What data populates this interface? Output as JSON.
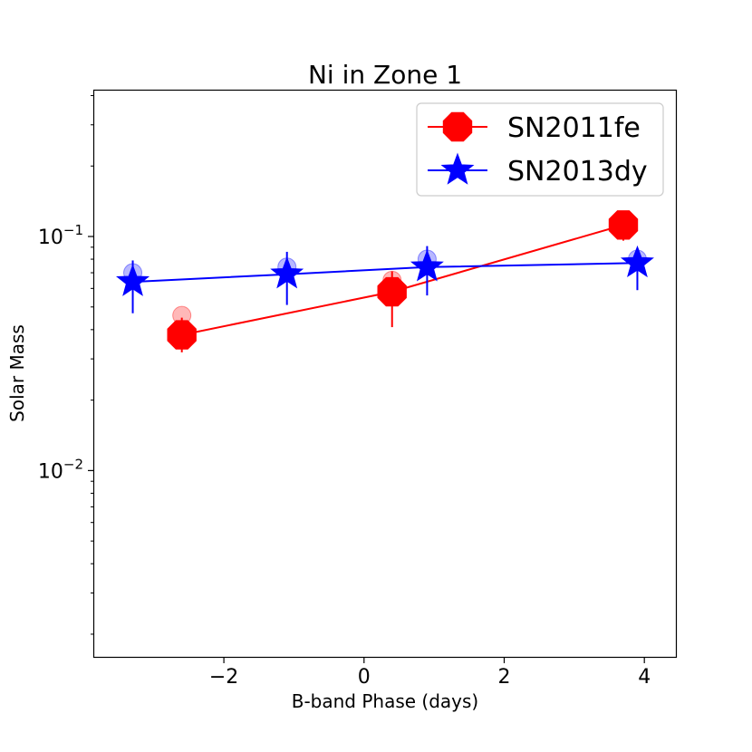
{
  "chart_data": {
    "type": "line",
    "title": "Ni in Zone 1",
    "xlabel": "B-band Phase (days)",
    "ylabel": "Solar Mass",
    "yscale": "log",
    "xlim": [
      -3.85,
      4.45
    ],
    "ylim": [
      0.0016,
      0.42
    ],
    "xticks": [
      {
        "value": -2,
        "label": "−2"
      },
      {
        "value": 0,
        "label": "0"
      },
      {
        "value": 2,
        "label": "2"
      },
      {
        "value": 4,
        "label": "4"
      }
    ],
    "yticks": [
      {
        "value": 0.01,
        "base": "10",
        "exp": "−2"
      },
      {
        "value": 0.1,
        "base": "10",
        "exp": "−1"
      }
    ],
    "series": [
      {
        "name": "SN2011fe",
        "color": "#ff0000",
        "marker": "octagon",
        "x": [
          -2.6,
          0.4,
          3.7
        ],
        "y": [
          0.038,
          0.058,
          0.112
        ],
        "yerr_low": [
          0.032,
          0.041,
          0.096
        ],
        "yerr_high": [
          0.045,
          0.071,
          0.118
        ],
        "ghost_y": [
          0.046,
          0.065,
          0.117
        ]
      },
      {
        "name": "SN2013dy",
        "color": "#0000ff",
        "marker": "star",
        "x": [
          -3.3,
          -1.1,
          0.9,
          3.9
        ],
        "y": [
          0.064,
          0.069,
          0.074,
          0.077
        ],
        "yerr_low": [
          0.047,
          0.051,
          0.056,
          0.059
        ],
        "yerr_high": [
          0.079,
          0.086,
          0.091,
          0.089
        ],
        "ghost_y": [
          0.07,
          0.074,
          0.08,
          0.08
        ]
      }
    ],
    "legend": {
      "position": "top-right"
    }
  }
}
